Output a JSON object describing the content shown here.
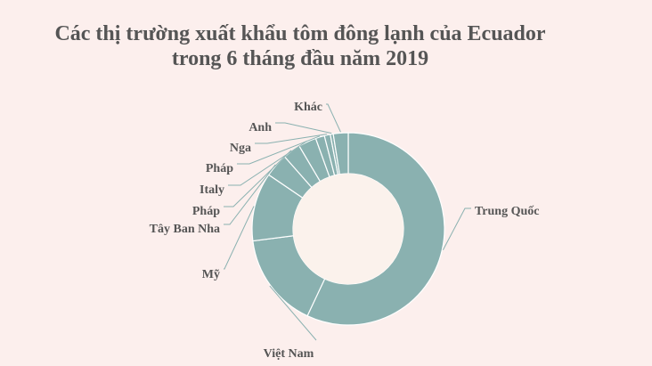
{
  "title": {
    "line1": "Các thị trường xuất khẩu tôm đông lạnh của Ecuador",
    "line2": "trong 6 tháng đầu năm 2019"
  },
  "colors": {
    "background": "#fcefed",
    "slice": "#8ab1b0",
    "hole": "#fbf2ec",
    "stroke": "#ffffff",
    "leader": "#8ab1b0"
  },
  "chart_data": {
    "type": "pie",
    "donut": true,
    "title": "Các thị trường xuất khẩu tôm đông lạnh của Ecuador trong 6 tháng đầu năm 2019",
    "legend": "none",
    "slices": [
      {
        "label": "Trung Quốc",
        "value": 57.0
      },
      {
        "label": "Việt Nam",
        "value": 16.0
      },
      {
        "label": "Mỹ",
        "value": 11.5
      },
      {
        "label": "Tây Ban Nha",
        "value": 4.0
      },
      {
        "label": "Pháp",
        "value": 3.0
      },
      {
        "label": "Italy",
        "value": 3.0
      },
      {
        "label": "Pháp",
        "value": 1.5
      },
      {
        "label": "Nga",
        "value": 1.0
      },
      {
        "label": "Anh",
        "value": 0.5
      },
      {
        "label": "Khác",
        "value": 2.5
      }
    ]
  }
}
